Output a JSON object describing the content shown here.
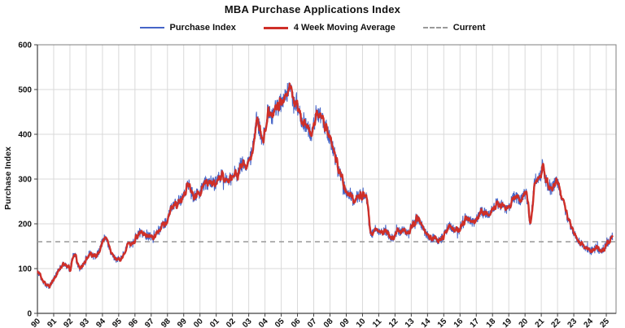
{
  "title": "MBA Purchase Applications Index",
  "legend": [
    {
      "label": "Purchase Index",
      "color": "#4565c8",
      "kind": "thin"
    },
    {
      "label": "4 Week Moving Average",
      "color": "#cf2f28",
      "kind": "thick"
    },
    {
      "label": "Current",
      "color": "#999999",
      "kind": "dashed"
    }
  ],
  "chart_data": {
    "type": "line",
    "title": "MBA Purchase Applications Index",
    "xlabel": "",
    "ylabel": "Purchase Index",
    "ylim": [
      0,
      600
    ],
    "ytick_step": 100,
    "xlim": [
      1990,
      2025.6
    ],
    "grid": true,
    "legend_position": "top",
    "x_tick_labels": [
      "90",
      "91",
      "92",
      "93",
      "94",
      "95",
      "96",
      "97",
      "98",
      "99",
      "00",
      "01",
      "02",
      "03",
      "04",
      "05",
      "06",
      "07",
      "08",
      "09",
      "10",
      "11",
      "12",
      "13",
      "14",
      "15",
      "16",
      "17",
      "18",
      "19",
      "20",
      "21",
      "22",
      "23",
      "24",
      "25"
    ],
    "y_tick_labels": [
      "0",
      "100",
      "200",
      "300",
      "400",
      "500",
      "600"
    ],
    "series": [
      {
        "name": "Purchase Index",
        "color": "#4565c8",
        "width": 1
      },
      {
        "name": "4 Week Moving Average",
        "color": "#cf2f28",
        "width": 2.4,
        "window": 4
      },
      {
        "name": "Current",
        "color": "#999999",
        "style": "dashed",
        "value": 160
      }
    ],
    "noise": {
      "seed": 20110,
      "base": 3,
      "scale": 0.042,
      "spike_prob": 0.05,
      "spike_mult": 1.7
    },
    "anchors": [
      [
        1990.0,
        95
      ],
      [
        1990.15,
        85
      ],
      [
        1990.3,
        72
      ],
      [
        1990.5,
        63
      ],
      [
        1990.7,
        60
      ],
      [
        1990.9,
        70
      ],
      [
        1991.1,
        82
      ],
      [
        1991.3,
        98
      ],
      [
        1991.5,
        105
      ],
      [
        1991.7,
        110
      ],
      [
        1991.85,
        102
      ],
      [
        1992.0,
        97
      ],
      [
        1992.15,
        125
      ],
      [
        1992.3,
        132
      ],
      [
        1992.45,
        110
      ],
      [
        1992.6,
        96
      ],
      [
        1992.8,
        108
      ],
      [
        1993.0,
        122
      ],
      [
        1993.2,
        133
      ],
      [
        1993.4,
        128
      ],
      [
        1993.6,
        126
      ],
      [
        1993.8,
        140
      ],
      [
        1994.0,
        160
      ],
      [
        1994.15,
        170
      ],
      [
        1994.3,
        158
      ],
      [
        1994.5,
        138
      ],
      [
        1994.7,
        125
      ],
      [
        1994.9,
        117
      ],
      [
        1995.1,
        122
      ],
      [
        1995.3,
        135
      ],
      [
        1995.5,
        148
      ],
      [
        1995.7,
        155
      ],
      [
        1995.9,
        162
      ],
      [
        1996.1,
        172
      ],
      [
        1996.3,
        180
      ],
      [
        1996.5,
        176
      ],
      [
        1996.7,
        170
      ],
      [
        1996.9,
        174
      ],
      [
        1997.1,
        166
      ],
      [
        1997.3,
        178
      ],
      [
        1997.5,
        188
      ],
      [
        1997.7,
        196
      ],
      [
        1997.9,
        205
      ],
      [
        1998.1,
        222
      ],
      [
        1998.3,
        240
      ],
      [
        1998.5,
        248
      ],
      [
        1998.7,
        244
      ],
      [
        1998.9,
        258
      ],
      [
        1999.1,
        275
      ],
      [
        1999.3,
        288
      ],
      [
        1999.5,
        272
      ],
      [
        1999.7,
        262
      ],
      [
        1999.9,
        268
      ],
      [
        2000.1,
        278
      ],
      [
        2000.3,
        292
      ],
      [
        2000.5,
        285
      ],
      [
        2000.7,
        296
      ],
      [
        2000.9,
        288
      ],
      [
        2001.1,
        302
      ],
      [
        2001.3,
        310
      ],
      [
        2001.5,
        296
      ],
      [
        2001.7,
        304
      ],
      [
        2001.9,
        298
      ],
      [
        2002.1,
        315
      ],
      [
        2002.3,
        308
      ],
      [
        2002.5,
        328
      ],
      [
        2002.7,
        340
      ],
      [
        2002.9,
        330
      ],
      [
        2003.1,
        345
      ],
      [
        2003.3,
        380
      ],
      [
        2003.5,
        435
      ],
      [
        2003.7,
        408
      ],
      [
        2003.85,
        385
      ],
      [
        2004.0,
        412
      ],
      [
        2004.15,
        445
      ],
      [
        2004.3,
        452
      ],
      [
        2004.45,
        438
      ],
      [
        2004.6,
        462
      ],
      [
        2004.75,
        455
      ],
      [
        2004.9,
        468
      ],
      [
        2005.05,
        472
      ],
      [
        2005.2,
        482
      ],
      [
        2005.35,
        492
      ],
      [
        2005.5,
        500
      ],
      [
        2005.65,
        488
      ],
      [
        2005.8,
        478
      ],
      [
        2005.95,
        465
      ],
      [
        2006.1,
        448
      ],
      [
        2006.25,
        436
      ],
      [
        2006.4,
        428
      ],
      [
        2006.55,
        418
      ],
      [
        2006.7,
        408
      ],
      [
        2006.85,
        402
      ],
      [
        2007.0,
        418
      ],
      [
        2007.15,
        432
      ],
      [
        2007.3,
        445
      ],
      [
        2007.45,
        438
      ],
      [
        2007.6,
        425
      ],
      [
        2007.75,
        415
      ],
      [
        2007.9,
        402
      ],
      [
        2008.05,
        385
      ],
      [
        2008.2,
        368
      ],
      [
        2008.35,
        345
      ],
      [
        2008.5,
        322
      ],
      [
        2008.65,
        310
      ],
      [
        2008.8,
        288
      ],
      [
        2008.95,
        272
      ],
      [
        2009.1,
        262
      ],
      [
        2009.25,
        268
      ],
      [
        2009.4,
        258
      ],
      [
        2009.55,
        252
      ],
      [
        2009.7,
        258
      ],
      [
        2009.85,
        265
      ],
      [
        2010.0,
        258
      ],
      [
        2010.15,
        268
      ],
      [
        2010.3,
        248
      ],
      [
        2010.4,
        198
      ],
      [
        2010.5,
        172
      ],
      [
        2010.65,
        178
      ],
      [
        2010.8,
        188
      ],
      [
        2010.95,
        182
      ],
      [
        2011.1,
        178
      ],
      [
        2011.3,
        186
      ],
      [
        2011.5,
        180
      ],
      [
        2011.7,
        172
      ],
      [
        2011.9,
        168
      ],
      [
        2012.1,
        182
      ],
      [
        2012.3,
        190
      ],
      [
        2012.5,
        186
      ],
      [
        2012.7,
        180
      ],
      [
        2012.9,
        188
      ],
      [
        2013.1,
        198
      ],
      [
        2013.3,
        212
      ],
      [
        2013.5,
        205
      ],
      [
        2013.7,
        192
      ],
      [
        2013.9,
        178
      ],
      [
        2014.1,
        172
      ],
      [
        2014.3,
        168
      ],
      [
        2014.5,
        166
      ],
      [
        2014.7,
        162
      ],
      [
        2014.9,
        168
      ],
      [
        2015.1,
        180
      ],
      [
        2015.3,
        196
      ],
      [
        2015.5,
        190
      ],
      [
        2015.7,
        186
      ],
      [
        2015.9,
        182
      ],
      [
        2016.1,
        202
      ],
      [
        2016.3,
        214
      ],
      [
        2016.5,
        210
      ],
      [
        2016.7,
        204
      ],
      [
        2016.9,
        200
      ],
      [
        2017.1,
        216
      ],
      [
        2017.3,
        228
      ],
      [
        2017.5,
        224
      ],
      [
        2017.7,
        220
      ],
      [
        2017.9,
        226
      ],
      [
        2018.1,
        238
      ],
      [
        2018.3,
        248
      ],
      [
        2018.5,
        244
      ],
      [
        2018.7,
        236
      ],
      [
        2018.9,
        232
      ],
      [
        2019.1,
        244
      ],
      [
        2019.3,
        262
      ],
      [
        2019.5,
        256
      ],
      [
        2019.7,
        252
      ],
      [
        2019.9,
        262
      ],
      [
        2020.05,
        272
      ],
      [
        2020.2,
        238
      ],
      [
        2020.3,
        192
      ],
      [
        2020.45,
        248
      ],
      [
        2020.6,
        295
      ],
      [
        2020.75,
        305
      ],
      [
        2020.9,
        298
      ],
      [
        2021.0,
        318
      ],
      [
        2021.1,
        335
      ],
      [
        2021.2,
        310
      ],
      [
        2021.35,
        288
      ],
      [
        2021.5,
        275
      ],
      [
        2021.65,
        280
      ],
      [
        2021.8,
        288
      ],
      [
        2021.95,
        292
      ],
      [
        2022.1,
        278
      ],
      [
        2022.25,
        258
      ],
      [
        2022.4,
        238
      ],
      [
        2022.55,
        222
      ],
      [
        2022.7,
        205
      ],
      [
        2022.85,
        192
      ],
      [
        2023.0,
        182
      ],
      [
        2023.15,
        168
      ],
      [
        2023.3,
        162
      ],
      [
        2023.45,
        158
      ],
      [
        2023.6,
        150
      ],
      [
        2023.75,
        146
      ],
      [
        2023.9,
        142
      ],
      [
        2024.05,
        140
      ],
      [
        2024.2,
        146
      ],
      [
        2024.35,
        152
      ],
      [
        2024.5,
        144
      ],
      [
        2024.65,
        138
      ],
      [
        2024.8,
        144
      ],
      [
        2024.95,
        150
      ],
      [
        2025.1,
        158
      ],
      [
        2025.25,
        165
      ],
      [
        2025.4,
        172
      ]
    ]
  }
}
